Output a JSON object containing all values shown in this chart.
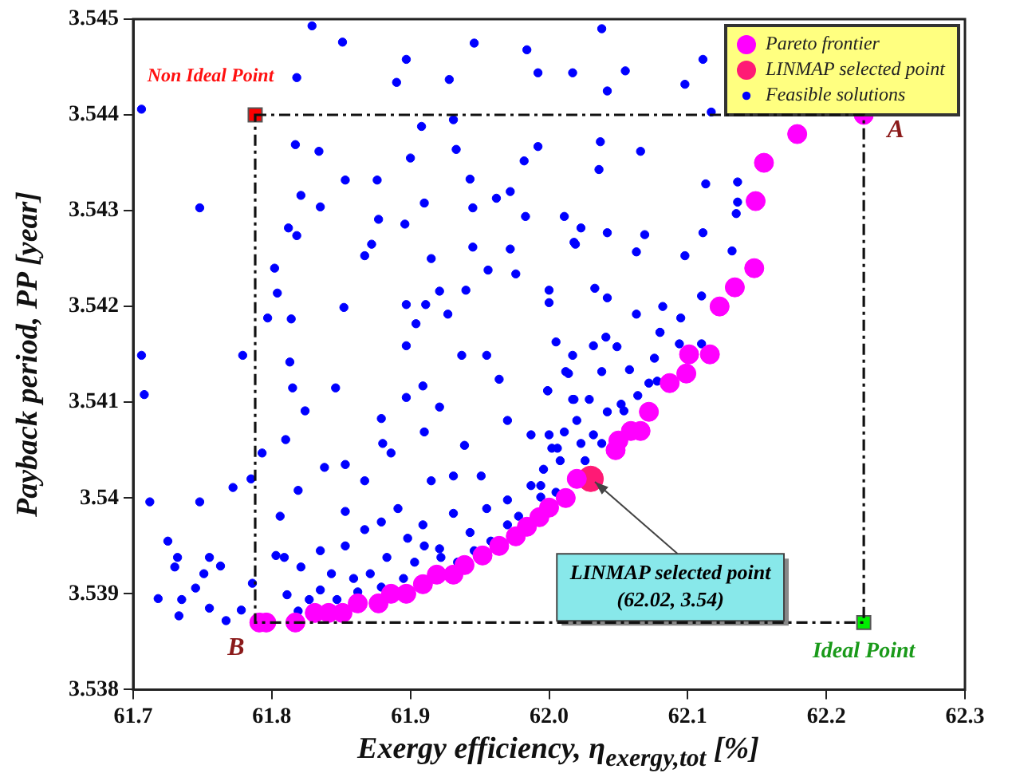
{
  "chart_data": {
    "type": "scatter",
    "xlabel": "Exergy efficiency, η$_{exergy,tot}$ [%]",
    "ylabel": "Payback period, PP [year]",
    "xlim": [
      61.7,
      62.3
    ],
    "xticks": [
      61.7,
      61.8,
      61.9,
      {
        "value": 62,
        "label": "62.0"
      },
      62.1,
      62.2,
      62.3
    ],
    "ylim": [
      3.538,
      3.545
    ],
    "yticks": [
      3.538,
      3.539,
      3.54,
      3.541,
      3.542,
      3.543,
      3.544,
      3.545
    ],
    "grid": false,
    "legend": "top right",
    "annotations": [
      {
        "text": "Non Ideal Point",
        "x": 61.788,
        "y": 3.544
      },
      {
        "text": "Ideal Point",
        "x": 62.227,
        "y": 3.5387
      },
      {
        "text": "A",
        "x": 62.227,
        "y": 3.544
      },
      {
        "text": "B",
        "x": 61.788,
        "y": 3.5387
      },
      {
        "text": "LINMAP selected point\n(62.02, 3.54)",
        "x": 62.03,
        "y": 3.5402
      }
    ],
    "series": [
      {
        "name": "Pareto frontier",
        "color": "#ff00ff",
        "marker": "circle",
        "x": [
          61.791,
          61.796,
          61.817,
          61.831,
          61.841,
          61.851,
          61.862,
          61.877,
          61.886,
          61.897,
          61.909,
          61.919,
          61.931,
          61.939,
          61.952,
          61.964,
          61.976,
          61.984,
          61.993,
          62.0,
          62.012,
          62.02,
          62.048,
          62.05,
          62.059,
          62.066,
          62.072,
          62.087,
          62.099,
          62.101,
          62.116,
          62.123,
          62.134,
          62.148,
          62.149,
          62.155,
          62.179,
          62.227
        ],
        "values": [
          3.5387,
          3.5387,
          3.5387,
          3.5388,
          3.5388,
          3.5388,
          3.5389,
          3.5389,
          3.539,
          3.539,
          3.5391,
          3.5392,
          3.5392,
          3.5393,
          3.5394,
          3.5395,
          3.5396,
          3.5397,
          3.5398,
          3.5399,
          3.54,
          3.5402,
          3.5405,
          3.5406,
          3.5407,
          3.5407,
          3.5409,
          3.5412,
          3.5413,
          3.5415,
          3.5415,
          3.542,
          3.5422,
          3.5424,
          3.5431,
          3.5435,
          3.5438,
          3.544
        ]
      },
      {
        "name": "LINMAP selected point",
        "color": "#ff1a75",
        "marker": "circle",
        "x": [
          62.03
        ],
        "values": [
          3.5402
        ]
      },
      {
        "name": "Feasible solutions",
        "color": "#0000ff",
        "marker": "circle",
        "x": [
          61.829,
          61.851,
          61.706,
          61.748,
          61.818,
          61.89,
          61.897,
          61.928,
          61.946,
          61.984,
          61.992,
          62.017,
          61.817,
          61.834,
          61.853,
          61.876,
          61.821,
          61.835,
          61.812,
          61.818,
          61.877,
          61.896,
          61.908,
          61.931,
          61.933,
          61.9,
          61.943,
          61.91,
          61.945,
          61.962,
          61.972,
          61.983,
          61.992,
          61.982,
          61.867,
          61.872,
          61.915,
          61.945,
          61.972,
          61.976,
          61.956,
          61.802,
          61.804,
          61.797,
          61.814,
          61.852,
          61.897,
          61.911,
          61.921,
          61.94,
          61.927,
          61.904,
          62.0,
          62.0,
          62.011,
          62.019,
          62.023,
          62.038,
          62.055,
          62.042,
          62.098,
          62.111,
          62.117,
          62.037,
          62.066,
          62.036,
          62.113,
          62.136,
          62.136,
          62.135,
          62.018,
          62.042,
          62.069,
          62.111,
          62.063,
          62.098,
          62.132,
          62.033,
          62.042,
          62.082,
          62.063,
          62.095,
          62.11,
          62.08,
          61.706,
          61.708,
          61.779,
          61.712,
          61.748,
          61.772,
          61.785,
          61.725,
          61.732,
          61.73,
          61.718,
          61.735,
          61.733,
          61.745,
          61.755,
          61.763,
          61.751,
          61.755,
          61.767,
          61.786,
          61.778,
          61.813,
          61.815,
          61.824,
          61.846,
          61.81,
          61.793,
          61.819,
          61.806,
          61.838,
          61.853,
          61.803,
          61.809,
          61.811,
          61.821,
          61.835,
          61.853,
          61.879,
          61.867,
          61.886,
          61.897,
          61.897,
          61.909,
          61.91,
          61.88,
          61.921,
          61.937,
          61.955,
          61.964,
          61.939,
          61.97,
          61.987,
          61.999,
          62.012,
          62.017,
          62.002,
          61.951,
          61.931,
          61.915,
          61.853,
          61.867,
          61.879,
          61.891,
          61.898,
          61.909,
          61.883,
          61.903,
          61.921,
          61.931,
          61.943,
          61.955,
          61.97,
          61.987,
          61.994,
          61.934,
          61.859,
          61.843,
          61.835,
          61.871,
          61.895,
          61.847,
          61.862,
          61.879,
          61.827,
          61.819,
          61.958,
          61.97,
          61.978,
          61.946,
          61.922,
          61.91,
          62.005,
          62.017,
          62.032,
          62.041,
          62.049,
          62.08,
          62.076,
          62.094,
          62.11,
          62.014,
          62.038,
          62.058,
          61.999,
          62.018,
          62.029,
          62.052,
          62.064,
          62.072,
          62.078,
          62.02,
          62.042,
          62.054,
          62.0,
          62.011,
          62.032,
          62.038,
          62.006,
          62.023,
          61.996,
          62.008,
          62.026,
          61.994,
          62.005
        ],
        "values": [
          3.54493,
          3.54476,
          3.54406,
          3.54303,
          3.54439,
          3.54434,
          3.54458,
          3.54437,
          3.54475,
          3.54468,
          3.54444,
          3.54444,
          3.54369,
          3.54362,
          3.54332,
          3.54332,
          3.54316,
          3.54304,
          3.54282,
          3.54274,
          3.54291,
          3.54286,
          3.54388,
          3.54395,
          3.54364,
          3.54355,
          3.54333,
          3.54308,
          3.54303,
          3.54313,
          3.5432,
          3.54294,
          3.54367,
          3.54352,
          3.54253,
          3.54265,
          3.5425,
          3.54262,
          3.5426,
          3.54234,
          3.54238,
          3.5424,
          3.54214,
          3.54188,
          3.54187,
          3.54199,
          3.54202,
          3.54202,
          3.54216,
          3.54217,
          3.54192,
          3.54182,
          3.54217,
          3.54204,
          3.54294,
          3.54265,
          3.54282,
          3.5449,
          3.54446,
          3.54425,
          3.54432,
          3.54458,
          3.54403,
          3.54372,
          3.54362,
          3.54343,
          3.54328,
          3.5433,
          3.54309,
          3.54297,
          3.54267,
          3.54277,
          3.54275,
          3.54277,
          3.54257,
          3.54253,
          3.54258,
          3.54219,
          3.54209,
          3.542,
          3.54192,
          3.54188,
          3.54211,
          3.54173,
          3.54149,
          3.54108,
          3.54149,
          3.53996,
          3.53996,
          3.54011,
          3.5402,
          3.53955,
          3.53938,
          3.53928,
          3.53895,
          3.53894,
          3.53877,
          3.53906,
          3.53938,
          3.53929,
          3.53921,
          3.53885,
          3.53872,
          3.53911,
          3.53883,
          3.54142,
          3.54115,
          3.54091,
          3.54115,
          3.54061,
          3.54047,
          3.54008,
          3.53981,
          3.54032,
          3.54035,
          3.5394,
          3.53938,
          3.53899,
          3.53928,
          3.53945,
          3.53986,
          3.54083,
          3.54018,
          3.54047,
          3.54159,
          3.54105,
          3.54117,
          3.54069,
          3.54057,
          3.54095,
          3.54149,
          3.54149,
          3.54124,
          3.54055,
          3.54081,
          3.54066,
          3.54112,
          3.54132,
          3.54103,
          3.54052,
          3.54023,
          3.54023,
          3.54018,
          3.5395,
          3.53967,
          3.53975,
          3.53989,
          3.53958,
          3.53972,
          3.53938,
          3.53933,
          3.53947,
          3.53984,
          3.53964,
          3.53989,
          3.53998,
          3.54013,
          3.54001,
          3.53933,
          3.53916,
          3.53921,
          3.53904,
          3.53921,
          3.53916,
          3.53894,
          3.53902,
          3.53907,
          3.53894,
          3.53882,
          3.53955,
          3.53972,
          3.53981,
          3.53945,
          3.53938,
          3.5395,
          3.54163,
          3.54149,
          3.54159,
          3.54168,
          3.54158,
          3.54173,
          3.54146,
          3.54161,
          3.54161,
          3.5413,
          3.54132,
          3.54134,
          3.54112,
          3.54103,
          3.54103,
          3.54098,
          3.54107,
          3.5412,
          3.54122,
          3.54081,
          3.5409,
          3.54091,
          3.54066,
          3.54069,
          3.54066,
          3.54057,
          3.54052,
          3.54057,
          3.5403,
          3.54039,
          3.54039,
          3.54013,
          3.54006
        ]
      },
      {
        "color": "#ff0000",
        "marker": "square",
        "x": [
          61.788
        ],
        "values": [
          3.544
        ]
      },
      {
        "color": "#00ee00",
        "marker": "square",
        "x": [
          62.227
        ],
        "values": [
          3.5387
        ]
      }
    ]
  }
}
